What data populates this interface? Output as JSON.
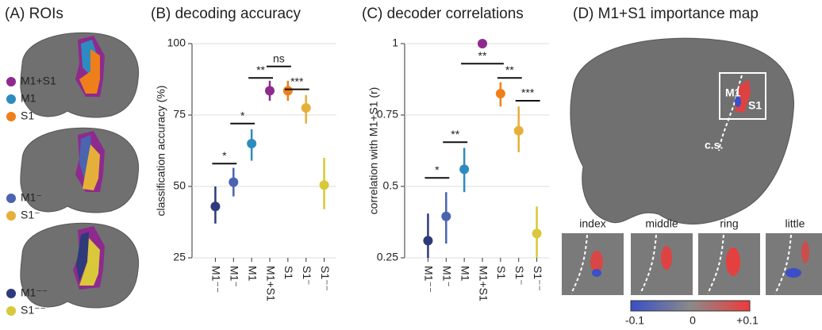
{
  "panels": {
    "A": {
      "title": "(A) ROIs",
      "legend": [
        {
          "label": "M1+S1",
          "color": "#8e2a8e"
        },
        {
          "label": "M1",
          "color": "#2e8bc0"
        },
        {
          "label": "S1",
          "color": "#ef7f1a"
        },
        {
          "label": "M1⁻",
          "color": "#4a64b0"
        },
        {
          "label": "S1⁻",
          "color": "#e5b03a"
        },
        {
          "label": "M1⁻⁻",
          "color": "#2e3a7a"
        },
        {
          "label": "S1⁻⁻",
          "color": "#d8c83a"
        }
      ]
    },
    "D": {
      "title": "(D) M1+S1 importance map",
      "region_labels": [
        "M1",
        "S1",
        "c.s."
      ],
      "fingers": [
        "index",
        "middle",
        "ring",
        "little"
      ],
      "colorbar_labels": [
        "-0.1",
        "0",
        "+0.1"
      ]
    }
  },
  "chart_data": [
    {
      "type": "errorpoint",
      "title": "(B) decoding accuracy",
      "y_label": "classification accuracy (%)",
      "categories": [
        "M1⁻⁻",
        "M1⁻",
        "M1",
        "M1+S1",
        "S1",
        "S1⁻",
        "S1⁻⁻"
      ],
      "values": [
        43,
        51.5,
        65,
        83.5,
        83.5,
        77.5,
        50.5
      ],
      "lower": [
        37,
        46.5,
        59,
        80,
        80,
        72,
        42
      ],
      "upper": [
        50,
        56.5,
        70,
        87,
        87,
        82,
        60
      ],
      "colors": [
        "#2e3a7a",
        "#4a64b0",
        "#2e8bc0",
        "#8e2a8e",
        "#ef7f1a",
        "#e5b03a",
        "#d8c83a"
      ],
      "ylim": [
        25,
        100
      ],
      "yticks": [
        25,
        50,
        75,
        100
      ],
      "grid": true,
      "annotations": [
        {
          "text": "*",
          "from": 0,
          "to": 1,
          "y": 58
        },
        {
          "text": "*",
          "from": 1,
          "to": 2,
          "y": 72
        },
        {
          "text": "**",
          "from": 2,
          "to": 3,
          "y": 88
        },
        {
          "text": "ns",
          "from": 3,
          "to": 4,
          "y": 92
        },
        {
          "text": "***",
          "from": 4,
          "to": 5,
          "y": 84
        }
      ]
    },
    {
      "type": "errorpoint",
      "title": "(C) decoder correlations",
      "y_label": "correlation with M1+S1 (r)",
      "categories": [
        "M1⁻⁻",
        "M1⁻",
        "M1",
        "M1+S1",
        "S1",
        "S1⁻",
        "S1⁻⁻"
      ],
      "values": [
        0.31,
        0.395,
        0.56,
        1,
        0.825,
        0.695,
        0.335
      ],
      "lower": [
        0.25,
        0.3,
        0.48,
        null,
        0.78,
        0.62,
        0.25
      ],
      "upper": [
        0.405,
        0.48,
        0.635,
        null,
        0.865,
        0.78,
        0.43
      ],
      "colors": [
        "#2e3a7a",
        "#4a64b0",
        "#2e8bc0",
        "#8e2a8e",
        "#ef7f1a",
        "#e5b03a",
        "#d8c83a"
      ],
      "ylim": [
        0.25,
        1
      ],
      "yticks": [
        0.25,
        0.5,
        0.75,
        1
      ],
      "grid": true,
      "annotations": [
        {
          "text": "*",
          "from": 0,
          "to": 1,
          "y": 0.53
        },
        {
          "text": "**",
          "from": 1,
          "to": 2,
          "y": 0.655
        },
        {
          "text": "**",
          "from": 2,
          "to": 4,
          "y": 0.93
        },
        {
          "text": "**",
          "from": 4,
          "to": 5,
          "y": 0.88
        },
        {
          "text": "***",
          "from": 5,
          "to": 6,
          "y": 0.8
        }
      ]
    }
  ]
}
